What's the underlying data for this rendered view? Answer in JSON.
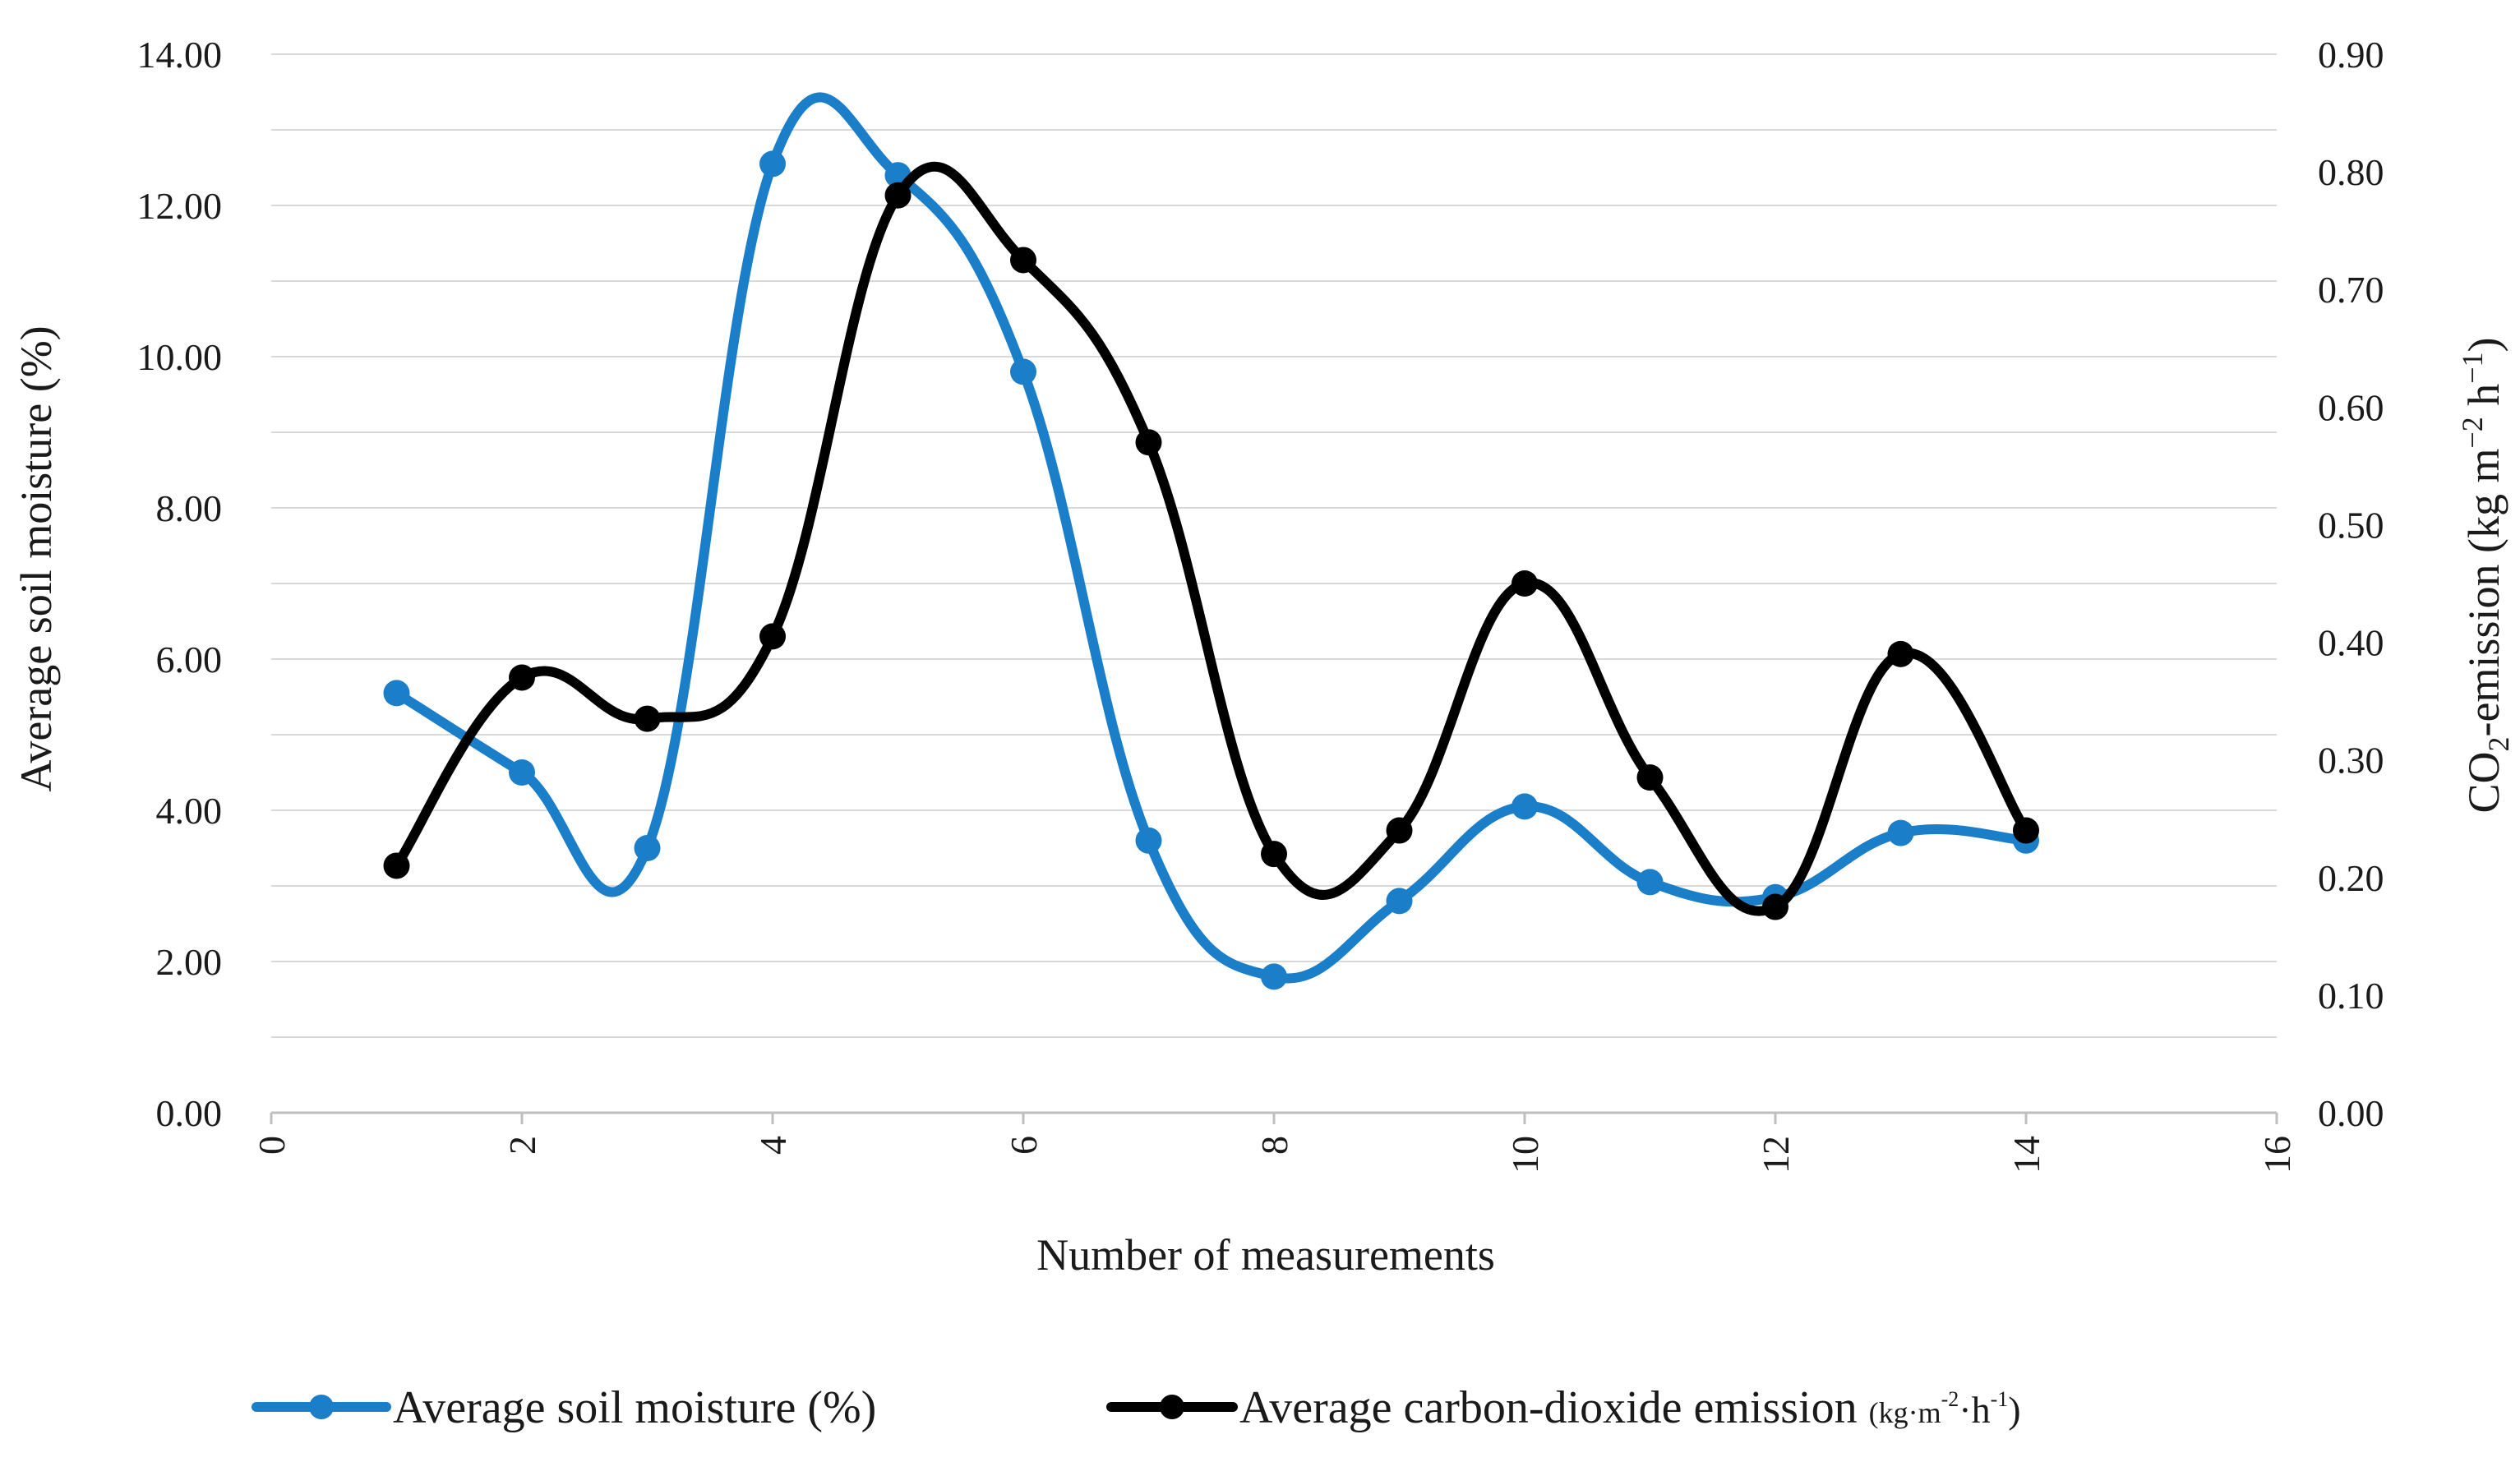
{
  "chart_data": {
    "type": "line",
    "smooth": true,
    "x_axis": {
      "label": "Number of measurements",
      "min": 0,
      "max": 16,
      "step": 2,
      "tick_labels": [
        "0",
        "2",
        "4",
        "6",
        "8",
        "10",
        "12",
        "14",
        "16"
      ]
    },
    "y_left": {
      "label": "Average soil moisture (%)",
      "min": 0,
      "max": 14,
      "step": 2,
      "tick_labels": [
        "0.00",
        "2.00",
        "4.00",
        "6.00",
        "8.00",
        "10.00",
        "12.00",
        "14.00"
      ]
    },
    "y_right": {
      "label_parts": [
        "CO",
        "2",
        "-emission (kg m",
        "−2",
        " h",
        "−1",
        ")"
      ],
      "min": 0,
      "max": 0.9,
      "step": 0.1,
      "tick_labels": [
        "0.00",
        "0.10",
        "0.20",
        "0.30",
        "0.40",
        "0.50",
        "0.60",
        "0.70",
        "0.80",
        "0.90"
      ]
    },
    "gridlines": "horizontal",
    "legend_position": "bottom",
    "series": [
      {
        "name": "Average soil moisture (%)",
        "axis": "left",
        "color": "#1b7ec9",
        "x": [
          1,
          2,
          3,
          4,
          5,
          6,
          7,
          8,
          9,
          10,
          11,
          12,
          13,
          14
        ],
        "values": [
          5.55,
          4.5,
          3.5,
          12.55,
          12.4,
          9.8,
          3.6,
          1.8,
          2.8,
          4.05,
          3.05,
          2.85,
          3.7,
          3.6
        ]
      },
      {
        "name": "Average carbon-dioxide emission",
        "legend_unit_parts": [
          "(kg·m",
          "-2",
          "·h",
          "-1",
          ")"
        ],
        "axis": "right",
        "color": "#000000",
        "x": [
          1,
          2,
          3,
          4,
          5,
          6,
          7,
          8,
          9,
          10,
          11,
          12,
          13,
          14
        ],
        "values": [
          0.21,
          0.37,
          0.335,
          0.405,
          0.78,
          0.725,
          0.57,
          0.22,
          0.24,
          0.45,
          0.285,
          0.175,
          0.39,
          0.24
        ]
      }
    ]
  }
}
